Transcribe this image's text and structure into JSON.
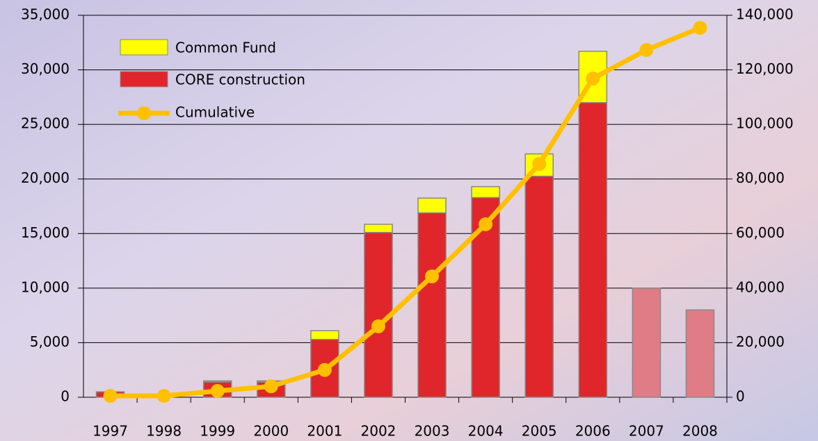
{
  "chart_data": {
    "type": "bar_line",
    "categories": [
      "1997",
      "1998",
      "1999",
      "2000",
      "2001",
      "2002",
      "2003",
      "2004",
      "2005",
      "2006",
      "2007",
      "2008"
    ],
    "series": [
      {
        "name": "CORE construction",
        "color": "#e0262b",
        "colors": [
          "#e0262b",
          "#e0262b",
          "#e0262b",
          "#e0262b",
          "#e0262b",
          "#e0262b",
          "#e0262b",
          "#e0262b",
          "#e0262b",
          "#e0262b",
          "#e07c86",
          "#e07c86"
        ],
        "values": [
          500,
          0,
          1400,
          1400,
          5300,
          15100,
          16900,
          18300,
          20250,
          27000,
          10000,
          8000
        ]
      },
      {
        "name": "Common Fund",
        "color": "#ffff00",
        "values": [
          0,
          0,
          100,
          100,
          800,
          750,
          1350,
          1000,
          2050,
          4700,
          0,
          0
        ]
      },
      {
        "name": "Cumulative",
        "color": "#ffc000",
        "axis": "y2",
        "values": [
          500,
          500,
          2300,
          4000,
          10000,
          26000,
          44300,
          63400,
          85500,
          116800,
          127300,
          135400
        ]
      }
    ],
    "ylim": [
      0,
      35000
    ],
    "yticks": [
      0,
      {
        "value": 5000,
        "label": "5,000"
      },
      {
        "value": 10000,
        "label": "10,000"
      },
      {
        "value": 15000,
        "label": "15,000"
      },
      {
        "value": 20000,
        "label": "20,000"
      },
      {
        "value": 25000,
        "label": "25,000"
      },
      {
        "value": 30000,
        "label": "30,000"
      },
      {
        "value": 35000,
        "label": "35,000"
      }
    ],
    "y2lim": [
      0,
      140000
    ],
    "y2ticks": [
      0,
      {
        "value": 20000,
        "label": "20,000"
      },
      {
        "value": 40000,
        "label": "40,000"
      },
      {
        "value": 60000,
        "label": "60,000"
      },
      {
        "value": 80000,
        "label": "80,000"
      },
      {
        "value": 100000,
        "label": "100,000"
      },
      {
        "value": 120000,
        "label": "120,000"
      },
      {
        "value": 140000,
        "label": "140,000"
      }
    ],
    "grid": true
  }
}
